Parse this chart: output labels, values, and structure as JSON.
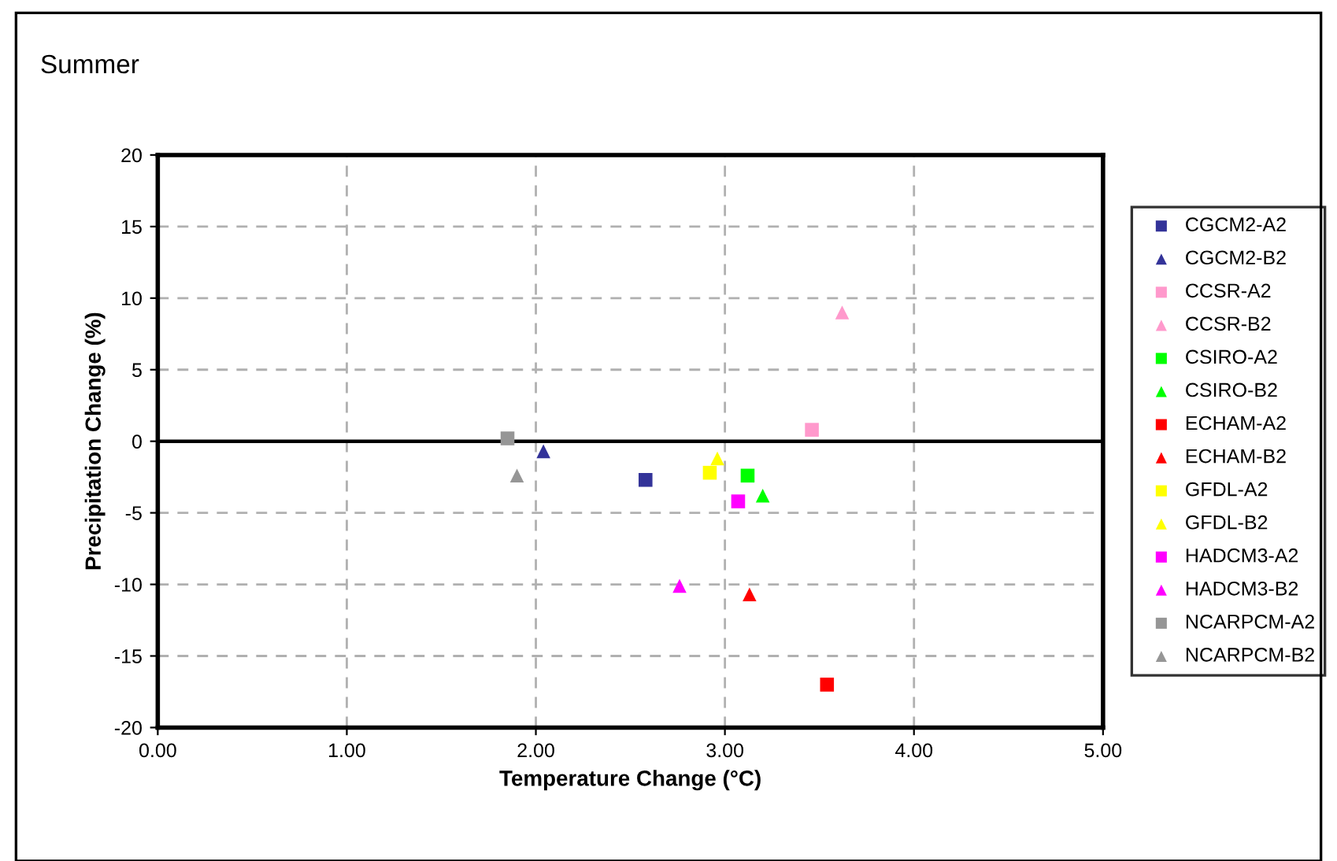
{
  "chart_data": {
    "type": "scatter",
    "title": "Summer",
    "xlabel": "Temperature Change (°C)",
    "ylabel": "Precipitation Change (%)",
    "xlim": [
      0,
      5
    ],
    "ylim": [
      -20,
      20
    ],
    "xticks": [
      {
        "value": 0,
        "label": "0.00"
      },
      {
        "value": 1,
        "label": "1.00"
      },
      {
        "value": 2,
        "label": "2.00"
      },
      {
        "value": 3,
        "label": "3.00"
      },
      {
        "value": 4,
        "label": "4.00"
      },
      {
        "value": 5,
        "label": "5.00"
      }
    ],
    "yticks": [
      -20,
      -15,
      -10,
      -5,
      0,
      5,
      10,
      15,
      20
    ],
    "grid": true,
    "legend": "right",
    "ref_lines": [
      {
        "axis": "y",
        "value": 0,
        "color": "#000000",
        "line_style": "solid"
      }
    ],
    "series": [
      {
        "name": "CGCM2-A2",
        "color": "#333399",
        "marker": "square",
        "x": [
          2.58
        ],
        "values": [
          -2.7
        ]
      },
      {
        "name": "CGCM2-B2",
        "color": "#333399",
        "marker": "triangle",
        "x": [
          2.04
        ],
        "values": [
          -0.7
        ]
      },
      {
        "name": "CCSR-A2",
        "color": "#ff99cc",
        "marker": "square",
        "x": [
          3.46
        ],
        "values": [
          0.8
        ]
      },
      {
        "name": "CCSR-B2",
        "color": "#ff99cc",
        "marker": "triangle",
        "x": [
          3.62
        ],
        "values": [
          9.0
        ]
      },
      {
        "name": "CSIRO-A2",
        "color": "#00ff00",
        "marker": "square",
        "x": [
          3.12
        ],
        "values": [
          -2.4
        ]
      },
      {
        "name": "CSIRO-B2",
        "color": "#00ff00",
        "marker": "triangle",
        "x": [
          3.2
        ],
        "values": [
          -3.8
        ]
      },
      {
        "name": "ECHAM-A2",
        "color": "#ff0000",
        "marker": "square",
        "x": [
          3.54
        ],
        "values": [
          -17.0
        ]
      },
      {
        "name": "ECHAM-B2",
        "color": "#ff0000",
        "marker": "triangle",
        "x": [
          3.13
        ],
        "values": [
          -10.7
        ]
      },
      {
        "name": "GFDL-A2",
        "color": "#ffff00",
        "marker": "square",
        "x": [
          2.92
        ],
        "values": [
          -2.2
        ]
      },
      {
        "name": "GFDL-B2",
        "color": "#ffff00",
        "marker": "triangle",
        "x": [
          2.96
        ],
        "values": [
          -1.2
        ]
      },
      {
        "name": "HADCM3-A2",
        "color": "#ff00ff",
        "marker": "square",
        "x": [
          3.07
        ],
        "values": [
          -4.2
        ]
      },
      {
        "name": "HADCM3-B2",
        "color": "#ff00ff",
        "marker": "triangle",
        "x": [
          2.76
        ],
        "values": [
          -10.1
        ]
      },
      {
        "name": "NCARPCM-A2",
        "color": "#969696",
        "marker": "square",
        "x": [
          1.85
        ],
        "values": [
          0.2
        ]
      },
      {
        "name": "NCARPCM-B2",
        "color": "#969696",
        "marker": "triangle",
        "x": [
          1.9
        ],
        "values": [
          -2.4
        ]
      }
    ]
  }
}
